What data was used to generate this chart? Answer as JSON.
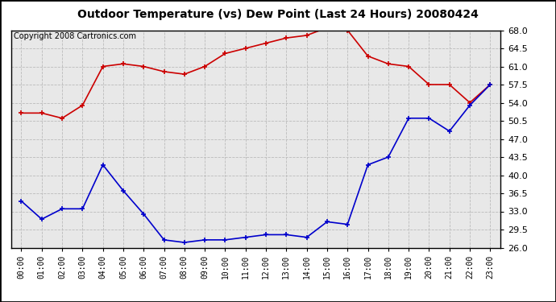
{
  "title": "Outdoor Temperature (vs) Dew Point (Last 24 Hours) 20080424",
  "copyright": "Copyright 2008 Cartronics.com",
  "hours": [
    "00:00",
    "01:00",
    "02:00",
    "03:00",
    "04:00",
    "05:00",
    "06:00",
    "07:00",
    "08:00",
    "09:00",
    "10:00",
    "11:00",
    "12:00",
    "13:00",
    "14:00",
    "15:00",
    "16:00",
    "17:00",
    "18:00",
    "19:00",
    "20:00",
    "21:00",
    "22:00",
    "23:00"
  ],
  "temp": [
    52.0,
    52.0,
    51.0,
    53.5,
    61.0,
    61.5,
    61.0,
    60.0,
    59.5,
    61.0,
    63.5,
    64.5,
    65.5,
    66.5,
    67.0,
    68.5,
    68.0,
    63.0,
    61.5,
    61.0,
    57.5,
    57.5,
    54.0,
    57.5
  ],
  "dew": [
    35.0,
    31.5,
    33.5,
    33.5,
    42.0,
    37.0,
    32.5,
    27.5,
    27.0,
    27.5,
    27.5,
    28.0,
    28.5,
    28.5,
    28.0,
    31.0,
    30.5,
    42.0,
    43.5,
    51.0,
    51.0,
    48.5,
    53.5,
    57.5
  ],
  "temp_color": "#cc0000",
  "dew_color": "#0000cc",
  "plot_bg": "#e8e8e8",
  "grid_color": "#bbbbbb",
  "ymin": 26.0,
  "ymax": 68.0,
  "yticks": [
    26.0,
    29.5,
    33.0,
    36.5,
    40.0,
    43.5,
    47.0,
    50.5,
    54.0,
    57.5,
    61.0,
    64.5,
    68.0
  ],
  "title_fontsize": 10,
  "copyright_fontsize": 7,
  "tick_fontsize": 8,
  "xtick_fontsize": 7
}
